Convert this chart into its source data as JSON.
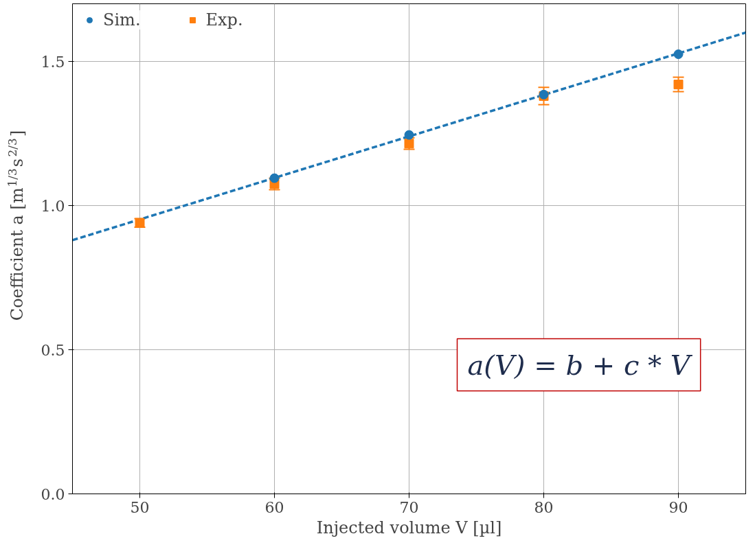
{
  "chart_data": {
    "type": "scatter",
    "xlabel": "Injected volume V [µl]",
    "ylabel": "Coefficient a [m$^{1/3}$s$^{2/3}$]",
    "x": [
      50,
      60,
      70,
      80,
      90
    ],
    "series": [
      {
        "name": "Sim.",
        "color": "#1f77b4",
        "marker": "circle",
        "values": [
          null,
          1.095,
          1.245,
          1.385,
          1.525
        ]
      },
      {
        "name": "Exp.",
        "color": "#ff7f0e",
        "marker": "square",
        "values": [
          0.94,
          1.075,
          1.215,
          1.38,
          1.42
        ],
        "errors": [
          0.015,
          0.02,
          0.02,
          0.03,
          0.025
        ]
      },
      {
        "type": "line",
        "color": "#1f77b4",
        "line_style": "dashed",
        "marker": "none",
        "x": [
          45,
          95
        ],
        "values": [
          0.88,
          1.6
        ]
      }
    ],
    "annotations": [
      "a(V) = b + c * V"
    ],
    "xlim": [
      45,
      95
    ],
    "ylim": [
      0,
      1.7
    ],
    "xticks": [
      50,
      60,
      70,
      80,
      90
    ],
    "yticks": [
      {
        "value": 0,
        "label": "0.0"
      },
      {
        "value": 0.5,
        "label": "0.5"
      },
      {
        "value": 1.0,
        "label": "1.0"
      },
      {
        "value": 1.5,
        "label": "1.5"
      }
    ],
    "grid": true,
    "legend": "top left"
  }
}
